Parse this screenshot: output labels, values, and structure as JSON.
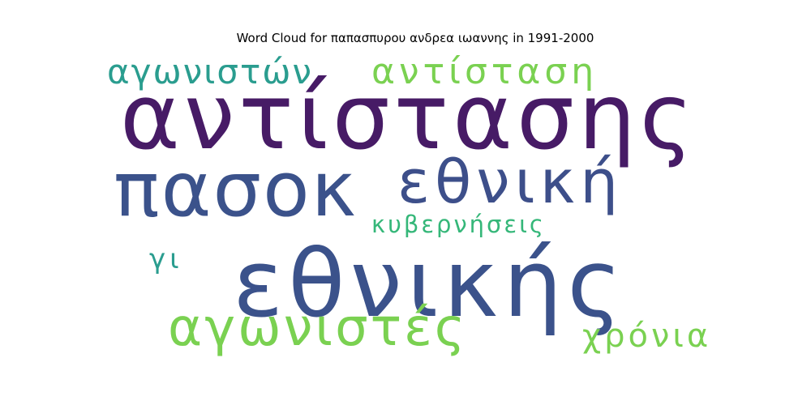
{
  "chart_data": {
    "type": "word_cloud",
    "title": "Word Cloud for παπασπυρου ανδρεα ιωαννης in 1991-2000",
    "words": [
      {
        "text": "αντίστασης",
        "color": "#471b66"
      },
      {
        "text": "εθνικής",
        "color": "#3b528b"
      },
      {
        "text": "πασοκ",
        "color": "#3b528b"
      },
      {
        "text": "εθνική",
        "color": "#3d4f8a"
      },
      {
        "text": "αγωνιστές",
        "color": "#7ad151"
      },
      {
        "text": "αντίσταση",
        "color": "#7ad151"
      },
      {
        "text": "αγωνιστών",
        "color": "#2a9d8f"
      },
      {
        "text": "χρόνια",
        "color": "#7ad151"
      },
      {
        "text": "κυβερνήσεις",
        "color": "#35b779"
      },
      {
        "text": "γι",
        "color": "#2a9d8f"
      }
    ]
  }
}
